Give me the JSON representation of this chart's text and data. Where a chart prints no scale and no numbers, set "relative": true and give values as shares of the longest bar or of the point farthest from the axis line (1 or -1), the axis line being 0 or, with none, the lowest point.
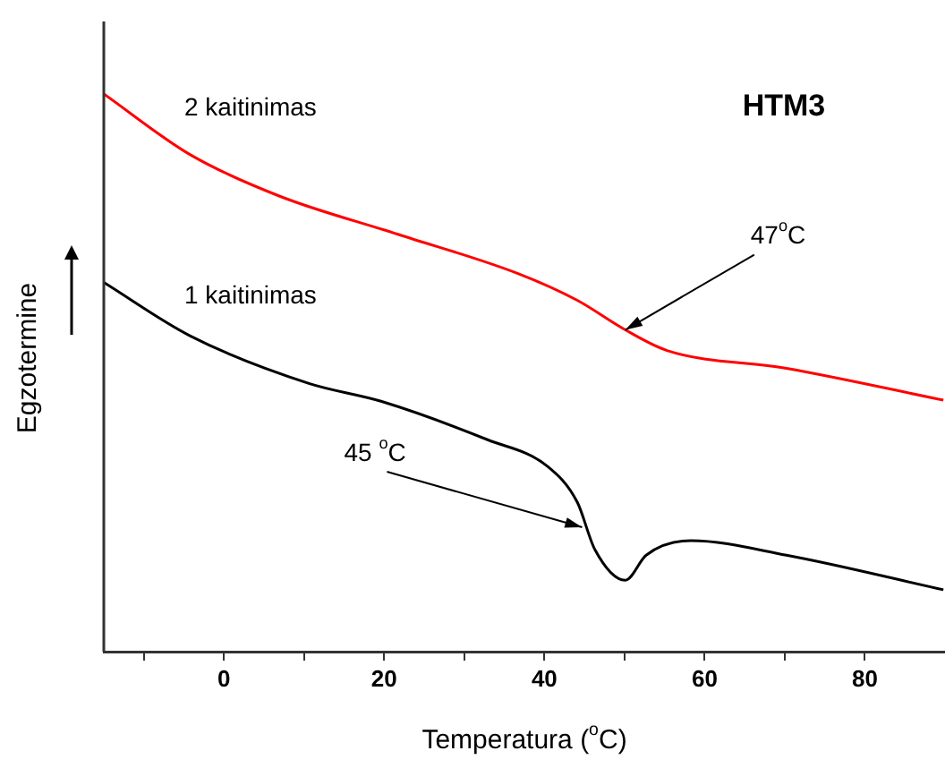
{
  "chart_data": {
    "type": "line",
    "title": "HTM3",
    "xlabel": "Temperatura ($^{o}$C)",
    "ylabel": "Egzotermine",
    "relative": true,
    "xlim": [
      -15,
      90
    ],
    "xticks": [
      {
        "value": -10,
        "label": null
      },
      0,
      {
        "value": 10,
        "label": null
      },
      20,
      {
        "value": 30,
        "label": null
      },
      40,
      {
        "value": 50,
        "label": null
      },
      60,
      {
        "value": 70,
        "label": null
      },
      80
    ],
    "series": [
      {
        "name": "2 kaitinimas",
        "color": "#ff0000",
        "x": [
          -15,
          -4.2,
          6.9,
          21.8,
          36.7,
          44.1,
          50.1,
          55.3,
          70.2,
          89.8
        ],
        "values": [
          1.0,
          0.891,
          0.817,
          0.748,
          0.678,
          0.63,
          0.577,
          0.54,
          0.508,
          0.451
        ]
      },
      {
        "name": "1 kaitinimas",
        "color": "#000000",
        "x": [
          -15,
          -4.2,
          10.6,
          19.6,
          32.9,
          40.4,
          44.1,
          46.3,
          50.1,
          52.7,
          58.3,
          70.2,
          89.8
        ],
        "values": [
          0.662,
          0.566,
          0.481,
          0.449,
          0.38,
          0.332,
          0.268,
          0.183,
          0.128,
          0.173,
          0.199,
          0.173,
          0.111
        ]
      }
    ],
    "annotations": [
      {
        "text": "47$^{o}$C",
        "x": 50.1,
        "y": 0.577
      },
      {
        "text": "45 $^{o}$C",
        "x": 44.7,
        "y": 0.223
      }
    ],
    "grid": false,
    "legend": false,
    "marker": "none",
    "line_style": "solid"
  }
}
